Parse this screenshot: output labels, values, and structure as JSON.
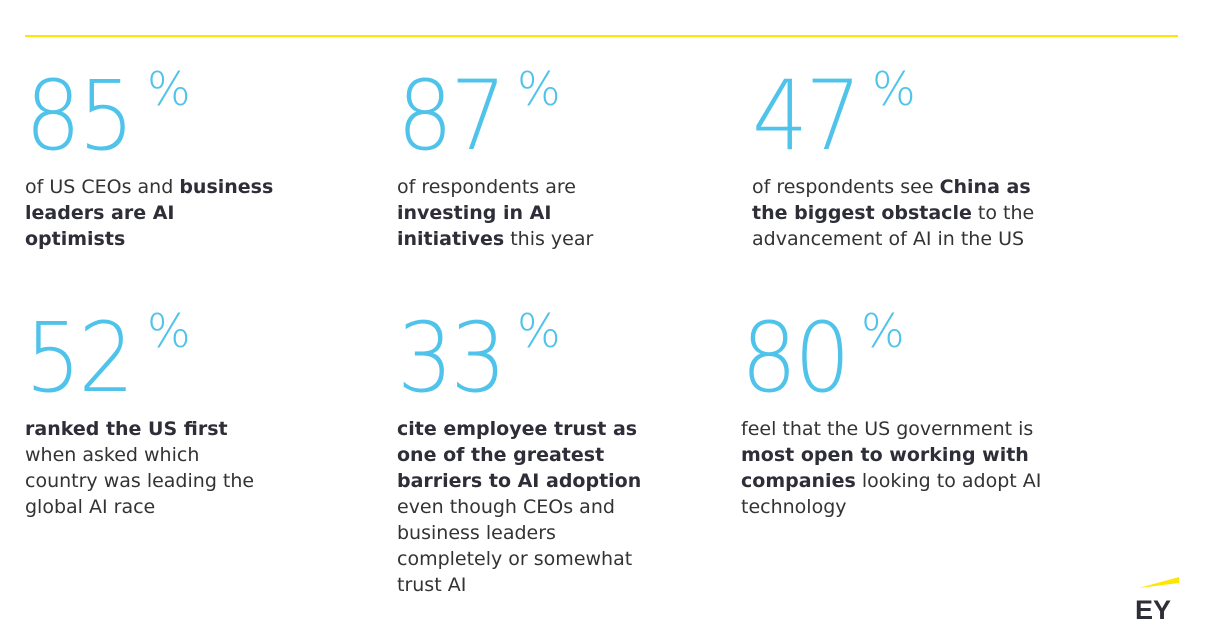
{
  "brand": {
    "logo_text": "EY",
    "accent_color": "#ffe600",
    "stat_color": "#4fc3ea"
  },
  "stats": [
    {
      "number": "85",
      "suffix": "%",
      "parts": [
        {
          "text": "of US CEOs and ",
          "bold": false
        },
        {
          "text": "business leaders are AI optimists",
          "bold": true
        }
      ]
    },
    {
      "number": "87",
      "suffix": "%",
      "parts": [
        {
          "text": "of respondents are ",
          "bold": false
        },
        {
          "text": "investing in AI initiatives",
          "bold": true
        },
        {
          "text": " this year",
          "bold": false
        }
      ]
    },
    {
      "number": "47",
      "suffix": "%",
      "parts": [
        {
          "text": "of respondents see ",
          "bold": false
        },
        {
          "text": "China as the biggest obstacle",
          "bold": true
        },
        {
          "text": " to the advancement of AI in the US",
          "bold": false
        }
      ]
    },
    {
      "number": "52",
      "suffix": "%",
      "parts": [
        {
          "text": "ranked the US first",
          "bold": true
        },
        {
          "text": " when asked which country was leading the global AI race",
          "bold": false
        }
      ]
    },
    {
      "number": "33",
      "suffix": "%",
      "parts": [
        {
          "text": "cite employee trust as one of the greatest barriers to AI adoption",
          "bold": true
        },
        {
          "text": " even though CEOs and business leaders completely or somewhat trust AI",
          "bold": false
        }
      ]
    },
    {
      "number": "80",
      "suffix": "%",
      "parts": [
        {
          "text": "feel that the US government is ",
          "bold": false
        },
        {
          "text": "most open to working with companies",
          "bold": true
        },
        {
          "text": " looking to adopt AI technology",
          "bold": false
        }
      ]
    }
  ]
}
